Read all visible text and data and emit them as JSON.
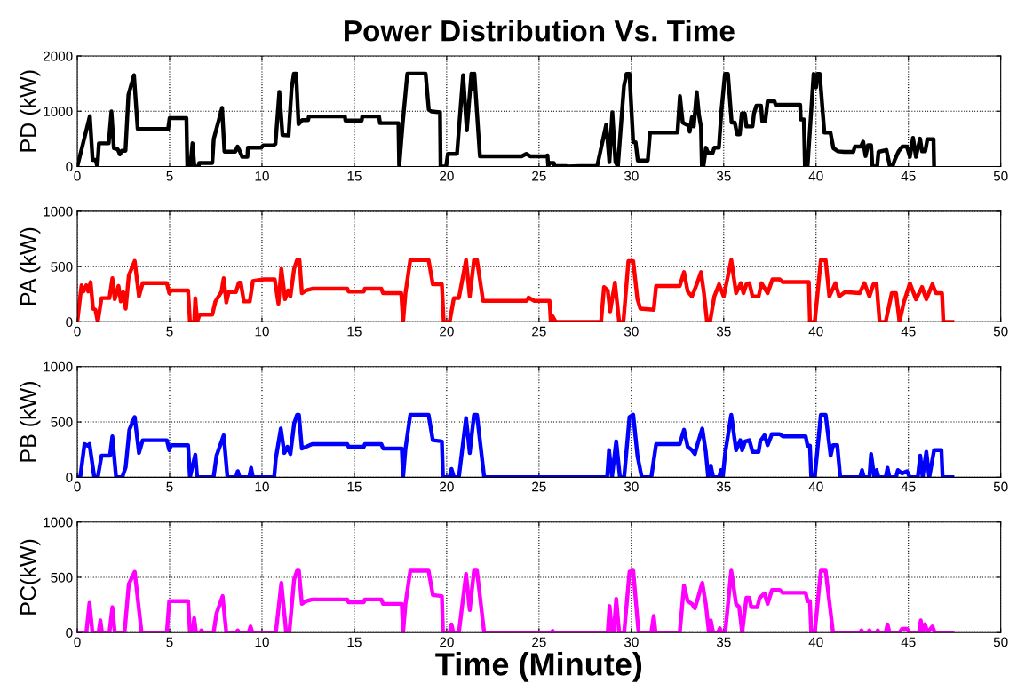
{
  "chart_data": [
    {
      "type": "line",
      "title": "Power Distribution Vs. Time",
      "ylabel": "PD (kW)",
      "xlim": [
        0,
        50
      ],
      "xticks": [
        0,
        5,
        10,
        15,
        20,
        25,
        30,
        35,
        40,
        45,
        50
      ],
      "ylim": [
        0,
        2000
      ],
      "yticks": [
        0,
        1000,
        2000
      ],
      "grid": true,
      "series": [
        {
          "color": "#000000",
          "x": [
            0,
            0.68,
            0.83,
            0.99,
            1.09,
            1.17,
            1.7,
            1.85,
            1.98,
            2.19,
            2.31,
            2.41,
            2.61,
            2.77,
            3.07,
            3.27,
            4.92,
            5.0,
            5.91,
            5.96,
            6.12,
            6.24,
            6.34,
            6.57,
            6.6,
            7.31,
            7.39,
            7.84,
            7.97,
            8.55,
            8.68,
            8.81,
            8.93,
            9.21,
            9.24,
            9.95,
            10.07,
            10.61,
            10.73,
            10.94,
            11.11,
            11.44,
            11.6,
            11.73,
            11.85,
            11.98,
            12.18,
            12.5,
            12.54,
            14.49,
            14.52,
            15.4,
            15.43,
            16.34,
            16.39,
            17.39,
            17.43,
            17.62,
            17.87,
            18.86,
            19.03,
            19.19,
            19.64,
            19.67,
            19.97,
            20.07,
            20.56,
            20.89,
            21.09,
            21.34,
            21.42,
            21.5,
            21.8,
            24.06,
            24.31,
            24.52,
            25.38,
            25.46,
            25.5,
            25.55,
            25.8,
            25.83,
            25.96,
            26.46,
            26.54,
            27.2,
            28.15,
            28.64,
            28.81,
            28.97,
            29.14,
            29.27,
            29.6,
            29.74,
            29.9,
            30.1,
            30.23,
            30.35,
            30.89,
            31.01,
            32.5,
            32.63,
            32.78,
            33.08,
            33.16,
            33.28,
            33.38,
            33.54,
            33.66,
            33.77,
            33.82,
            33.9,
            34.04,
            34.16,
            34.4,
            34.49,
            34.74,
            34.87,
            35.07,
            35.23,
            35.43,
            35.6,
            35.73,
            35.87,
            35.98,
            36.14,
            36.23,
            36.56,
            36.64,
            36.77,
            37.02,
            37.09,
            37.25,
            37.38,
            37.75,
            37.81,
            39.14,
            39.17,
            39.34,
            39.4,
            39.54,
            39.87,
            40.0,
            40.07,
            40.2,
            40.45,
            40.78,
            40.94,
            41.19,
            41.52,
            42.02,
            42.1,
            42.43,
            42.55,
            42.68,
            42.81,
            42.98,
            43.05,
            43.31,
            43.38,
            43.81,
            44.0,
            44.14,
            44.26,
            44.47,
            44.67,
            44.92,
            45.08,
            45.25,
            45.41,
            45.63,
            45.74,
            45.91,
            46.03,
            46.36,
            46.39
          ],
          "values": [
            0,
            910,
            120,
            120,
            0,
            420,
            420,
            995,
            330,
            310,
            220,
            285,
            285,
            1295,
            1650,
            680,
            680,
            875,
            875,
            0,
            0,
            420,
            0,
            0,
            65,
            65,
            500,
            1060,
            270,
            270,
            360,
            270,
            175,
            175,
            340,
            340,
            380,
            380,
            410,
            1350,
            570,
            560,
            1400,
            1680,
            1680,
            765,
            840,
            840,
            905,
            905,
            830,
            830,
            905,
            905,
            785,
            785,
            0,
            785,
            1680,
            1680,
            1030,
            995,
            980,
            0,
            0,
            230,
            230,
            1650,
            655,
            1680,
            1400,
            1680,
            185,
            185,
            230,
            185,
            185,
            200,
            0,
            65,
            65,
            0,
            10,
            10,
            0,
            10,
            10,
            760,
            80,
            980,
            80,
            0,
            1455,
            1675,
            1675,
            440,
            440,
            110,
            110,
            615,
            615,
            1275,
            795,
            740,
            630,
            890,
            725,
            1345,
            935,
            725,
            0,
            0,
            340,
            245,
            245,
            340,
            340,
            980,
            1675,
            1675,
            795,
            795,
            580,
            580,
            960,
            960,
            725,
            725,
            960,
            1100,
            1100,
            815,
            815,
            1180,
            1180,
            1115,
            1115,
            850,
            850,
            0,
            0,
            1675,
            1430,
            1675,
            1675,
            615,
            615,
            330,
            275,
            265,
            265,
            360,
            360,
            450,
            190,
            385,
            385,
            0,
            0,
            265,
            300,
            0,
            0,
            120,
            275,
            360,
            360,
            175,
            520,
            175,
            505,
            275,
            275,
            495,
            495,
            0
          ]
        }
      ]
    },
    {
      "type": "line",
      "ylabel": "PA (kW)",
      "xlim": [
        0,
        50
      ],
      "xticks": [
        0,
        5,
        10,
        15,
        20,
        25,
        30,
        35,
        40,
        45,
        50
      ],
      "ylim": [
        0,
        1000
      ],
      "yticks": [
        0,
        500,
        1000
      ],
      "grid": true,
      "series": [
        {
          "color": "#ff0000",
          "x": [
            0,
            0.23,
            0.33,
            0.49,
            0.59,
            0.72,
            0.85,
            0.98,
            1.11,
            1.31,
            1.74,
            1.9,
            2.03,
            2.23,
            2.36,
            2.49,
            2.62,
            2.79,
            3.11,
            3.34,
            3.54,
            4.85,
            4.98,
            5.08,
            6.0,
            6.1,
            6.33,
            6.39,
            6.49,
            6.62,
            7.31,
            7.48,
            7.8,
            7.93,
            8.07,
            8.2,
            8.59,
            8.75,
            8.85,
            9.02,
            9.34,
            9.51,
            10.1,
            10.69,
            10.89,
            11.05,
            11.25,
            11.41,
            11.54,
            11.74,
            11.9,
            12.03,
            12.16,
            12.39,
            12.72,
            14.62,
            14.69,
            15.51,
            15.57,
            16.46,
            16.56,
            17.54,
            17.64,
            17.77,
            18.03,
            19.02,
            19.25,
            19.74,
            19.84,
            20.16,
            20.39,
            20.66,
            21.05,
            21.25,
            21.48,
            21.64,
            21.97,
            24.33,
            24.43,
            24.75,
            25.57,
            25.64,
            25.74,
            25.9,
            28.36,
            28.52,
            28.72,
            28.85,
            29.11,
            29.34,
            29.57,
            29.84,
            30.1,
            30.33,
            30.49,
            31.21,
            31.34,
            32.62,
            32.85,
            33.05,
            33.28,
            33.54,
            33.77,
            33.93,
            34.1,
            34.26,
            34.49,
            34.75,
            35.0,
            35.41,
            35.67,
            35.93,
            36.07,
            36.23,
            36.39,
            36.56,
            36.89,
            37.05,
            37.38,
            37.64,
            38.03,
            38.2,
            39.61,
            39.67,
            39.93,
            40.26,
            40.52,
            40.72,
            41.05,
            41.25,
            41.57,
            42.36,
            42.62,
            42.89,
            43.11,
            43.28,
            43.44,
            43.77,
            44.1,
            44.33,
            44.52,
            44.75,
            45.08,
            45.41,
            45.74,
            45.97,
            46.3,
            46.49,
            46.82,
            46.89,
            47.38
          ],
          "values": [
            0,
            330,
            275,
            330,
            275,
            360,
            120,
            110,
            0,
            215,
            215,
            395,
            205,
            325,
            185,
            270,
            120,
            420,
            550,
            230,
            350,
            350,
            260,
            285,
            285,
            0,
            0,
            215,
            0,
            65,
            65,
            185,
            270,
            395,
            175,
            270,
            270,
            355,
            355,
            185,
            185,
            370,
            385,
            385,
            165,
            480,
            205,
            285,
            230,
            480,
            560,
            560,
            260,
            285,
            300,
            300,
            275,
            275,
            300,
            300,
            260,
            260,
            0,
            260,
            560,
            560,
            340,
            340,
            0,
            0,
            215,
            215,
            560,
            230,
            560,
            560,
            190,
            190,
            220,
            190,
            190,
            0,
            50,
            0,
            0,
            315,
            285,
            95,
            355,
            0,
            0,
            550,
            550,
            205,
            120,
            110,
            325,
            325,
            450,
            275,
            230,
            340,
            450,
            260,
            0,
            0,
            230,
            340,
            230,
            560,
            260,
            350,
            260,
            340,
            350,
            230,
            230,
            350,
            260,
            385,
            385,
            360,
            360,
            0,
            0,
            560,
            560,
            230,
            350,
            230,
            270,
            260,
            350,
            230,
            340,
            340,
            0,
            0,
            260,
            260,
            0,
            175,
            350,
            205,
            315,
            205,
            340,
            260,
            260,
            0,
            0
          ]
        }
      ]
    },
    {
      "type": "line",
      "ylabel": "PB (kW)",
      "xlim": [
        0,
        50
      ],
      "xticks": [
        0,
        5,
        10,
        15,
        20,
        25,
        30,
        35,
        40,
        45,
        50
      ],
      "ylim": [
        0,
        1000
      ],
      "yticks": [
        0,
        500,
        1000
      ],
      "grid": true,
      "series": [
        {
          "color": "#0000ff",
          "x": [
            0,
            0.16,
            0.39,
            0.56,
            0.66,
            0.92,
            1.11,
            1.31,
            1.77,
            1.9,
            2.1,
            2.43,
            2.62,
            2.82,
            3.11,
            3.34,
            3.54,
            4.85,
            4.98,
            5.08,
            6.0,
            6.1,
            6.39,
            6.49,
            7.38,
            7.54,
            7.93,
            8.13,
            8.59,
            8.69,
            8.79,
            9.31,
            9.41,
            9.51,
            10.66,
            10.75,
            11.02,
            11.21,
            11.38,
            11.54,
            11.74,
            11.9,
            12.0,
            12.16,
            12.39,
            12.72,
            14.62,
            14.69,
            15.51,
            15.57,
            16.46,
            16.56,
            17.57,
            17.64,
            17.77,
            18.03,
            19.02,
            19.25,
            19.74,
            19.8,
            20.16,
            20.26,
            20.39,
            20.66,
            21.05,
            21.25,
            21.48,
            21.64,
            22.03,
            28.69,
            28.79,
            28.95,
            29.18,
            29.38,
            29.61,
            29.9,
            30.1,
            30.33,
            30.56,
            31.08,
            31.34,
            32.62,
            32.85,
            33.05,
            33.28,
            33.44,
            33.61,
            33.84,
            34.03,
            34.16,
            34.3,
            34.43,
            34.75,
            34.85,
            34.95,
            35.08,
            35.41,
            35.67,
            35.9,
            36.0,
            36.16,
            36.39,
            36.56,
            36.89,
            36.98,
            37.21,
            37.38,
            37.61,
            38.03,
            38.2,
            39.44,
            39.54,
            39.67,
            39.74,
            39.93,
            40.26,
            40.52,
            40.79,
            40.92,
            41.15,
            41.31,
            42.39,
            42.49,
            42.59,
            42.89,
            42.98,
            43.15,
            43.28,
            43.38,
            43.77,
            43.87,
            43.97,
            44.33,
            44.43,
            44.66,
            44.92,
            45.08,
            45.51,
            45.64,
            45.77,
            45.97,
            46.13,
            46.39,
            46.79,
            46.85,
            47.38
          ],
          "values": [
            0,
            0,
            300,
            285,
            300,
            0,
            0,
            195,
            195,
            370,
            0,
            0,
            90,
            430,
            545,
            220,
            335,
            335,
            245,
            290,
            290,
            0,
            205,
            0,
            0,
            195,
            380,
            0,
            0,
            55,
            0,
            0,
            85,
            0,
            0,
            170,
            440,
            220,
            275,
            210,
            485,
            565,
            565,
            260,
            275,
            300,
            300,
            275,
            275,
            300,
            300,
            260,
            260,
            0,
            260,
            565,
            565,
            335,
            325,
            0,
            0,
            75,
            0,
            0,
            535,
            220,
            565,
            565,
            0,
            0,
            245,
            0,
            325,
            0,
            0,
            545,
            565,
            195,
            0,
            0,
            300,
            300,
            430,
            275,
            245,
            210,
            315,
            440,
            230,
            0,
            105,
            0,
            0,
            65,
            0,
            220,
            565,
            245,
            335,
            245,
            325,
            335,
            230,
            230,
            325,
            380,
            290,
            390,
            390,
            370,
            370,
            285,
            285,
            0,
            0,
            565,
            565,
            195,
            290,
            290,
            0,
            0,
            65,
            0,
            0,
            210,
            0,
            65,
            0,
            0,
            85,
            0,
            0,
            65,
            35,
            55,
            0,
            0,
            195,
            0,
            230,
            0,
            245,
            245,
            0,
            0
          ]
        }
      ]
    },
    {
      "type": "line",
      "ylabel": "PC(kW)",
      "xlabel": "Time (Minute)",
      "xlim": [
        0,
        50
      ],
      "xticks": [
        0,
        5,
        10,
        15,
        20,
        25,
        30,
        35,
        40,
        45,
        50
      ],
      "ylim": [
        0,
        1000
      ],
      "yticks": [
        0,
        500,
        1000
      ],
      "grid": true,
      "series": [
        {
          "color": "#ff00ff",
          "x": [
            0,
            0.49,
            0.66,
            0.82,
            1.15,
            1.25,
            1.34,
            1.74,
            1.9,
            2.03,
            2.56,
            2.79,
            3.11,
            3.48,
            4.85,
            4.98,
            6.0,
            6.1,
            6.23,
            6.33,
            6.43,
            6.66,
            6.72,
            6.82,
            7.38,
            7.54,
            7.87,
            8.07,
            8.62,
            8.69,
            8.75,
            9.28,
            9.38,
            9.48,
            10.75,
            11.05,
            11.31,
            11.48,
            11.74,
            11.9,
            12.0,
            12.16,
            12.39,
            12.72,
            14.62,
            14.69,
            15.51,
            15.57,
            16.46,
            16.56,
            17.57,
            17.64,
            17.77,
            18.03,
            19.02,
            19.25,
            19.74,
            19.8,
            20.16,
            20.26,
            20.36,
            20.66,
            21.05,
            21.25,
            21.48,
            21.64,
            22.03,
            25.67,
            25.74,
            25.8,
            28.72,
            28.82,
            28.95,
            29.05,
            29.18,
            29.34,
            29.61,
            29.9,
            30.1,
            30.39,
            31.08,
            31.21,
            31.31,
            32.62,
            32.85,
            33.05,
            33.28,
            33.44,
            33.61,
            33.84,
            34.03,
            34.2,
            34.3,
            34.43,
            34.69,
            34.79,
            34.89,
            35.08,
            35.41,
            35.67,
            35.84,
            36.0,
            36.23,
            36.39,
            36.49,
            36.82,
            36.95,
            37.21,
            37.38,
            37.61,
            38.03,
            38.2,
            39.44,
            39.54,
            39.67,
            39.74,
            39.93,
            40.26,
            40.52,
            40.92,
            42.39,
            42.46,
            42.52,
            42.82,
            42.89,
            42.95,
            43.28,
            43.34,
            43.41,
            43.77,
            43.87,
            43.97,
            44.52,
            44.66,
            44.92,
            45.08,
            45.57,
            45.67,
            45.77,
            45.9,
            46.03,
            46.3,
            46.43,
            47.38
          ],
          "values": [
            0,
            0,
            270,
            0,
            0,
            110,
            0,
            0,
            230,
            0,
            0,
            440,
            550,
            0,
            0,
            285,
            285,
            0,
            0,
            130,
            0,
            0,
            20,
            0,
            0,
            175,
            330,
            0,
            0,
            20,
            0,
            0,
            55,
            0,
            0,
            450,
            0,
            0,
            480,
            560,
            560,
            260,
            285,
            300,
            300,
            275,
            275,
            300,
            300,
            260,
            260,
            0,
            260,
            560,
            560,
            340,
            330,
            0,
            0,
            75,
            0,
            0,
            530,
            205,
            560,
            560,
            0,
            0,
            15,
            0,
            0,
            240,
            0,
            0,
            305,
            0,
            0,
            550,
            560,
            0,
            0,
            150,
            0,
            0,
            425,
            285,
            260,
            220,
            315,
            450,
            260,
            0,
            110,
            0,
            0,
            40,
            0,
            0,
            560,
            260,
            230,
            0,
            315,
            315,
            230,
            230,
            315,
            355,
            260,
            385,
            385,
            360,
            360,
            285,
            285,
            0,
            0,
            560,
            560,
            0,
            0,
            20,
            0,
            0,
            20,
            0,
            0,
            20,
            0,
            0,
            75,
            0,
            0,
            35,
            35,
            0,
            0,
            110,
            0,
            75,
            0,
            55,
            0,
            0
          ]
        }
      ]
    }
  ]
}
